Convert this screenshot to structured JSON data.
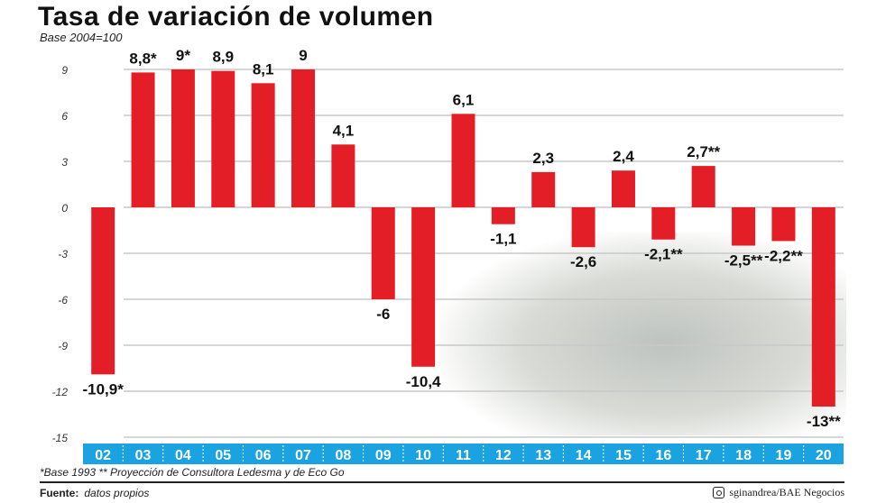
{
  "chart_data": {
    "type": "bar",
    "title": "Tasa de variación de volumen",
    "subtitle": "Base 2004=100",
    "categories": [
      "02",
      "03",
      "04",
      "05",
      "06",
      "07",
      "08",
      "09",
      "10",
      "11",
      "12",
      "13",
      "14",
      "15",
      "16",
      "17",
      "18",
      "19",
      "20"
    ],
    "values": [
      -10.9,
      8.8,
      9,
      8.9,
      8.1,
      9,
      4.1,
      -6,
      -10.4,
      6.1,
      -1.1,
      2.3,
      -2.6,
      2.4,
      -2.1,
      2.7,
      -2.5,
      -2.2,
      -13
    ],
    "data_labels": [
      "-10,9*",
      "8,8*",
      "9*",
      "8,9",
      "8,1",
      "9",
      "4,1",
      "-6",
      "-10,4",
      "6,1",
      "-1,1",
      "2,3",
      "-2,6",
      "2,4",
      "-2,1**",
      "2,7**",
      "-2,5**",
      "-2,2**",
      "-13**"
    ],
    "yticks": [
      9,
      6,
      3,
      0,
      -3,
      -6,
      -9,
      -12,
      -15
    ],
    "ylim": [
      -15,
      9
    ],
    "grid": true,
    "colors": {
      "bar": "#e41e26",
      "axis_band": "#1aa3e0"
    }
  },
  "footnote": "*Base 1993 ** Proyección de Consultora Ledesma y de Eco Go",
  "source_label": "Fuente:",
  "source_value": "datos propios",
  "credit": "sginandrea/BAE Negocios"
}
